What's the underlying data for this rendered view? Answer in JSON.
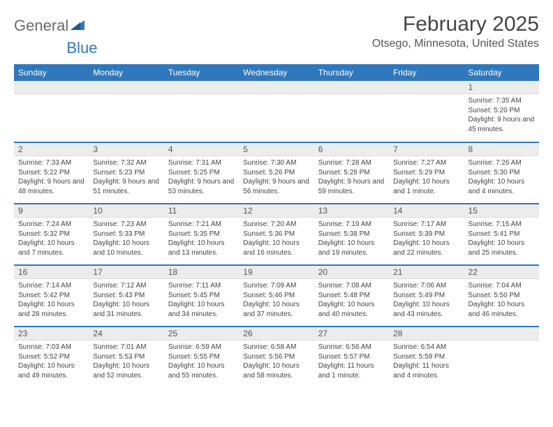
{
  "brand": {
    "part1": "General",
    "part2": "Blue"
  },
  "title": "February 2025",
  "location": "Otsego, Minnesota, United States",
  "colors": {
    "accent": "#2f78bd",
    "daybar": "#ececec",
    "text": "#444444"
  },
  "day_headers": [
    "Sunday",
    "Monday",
    "Tuesday",
    "Wednesday",
    "Thursday",
    "Friday",
    "Saturday"
  ],
  "weeks": [
    [
      null,
      null,
      null,
      null,
      null,
      null,
      {
        "n": "1",
        "sunrise": "7:35 AM",
        "sunset": "5:20 PM",
        "daylight": "9 hours and 45 minutes."
      }
    ],
    [
      {
        "n": "2",
        "sunrise": "7:33 AM",
        "sunset": "5:22 PM",
        "daylight": "9 hours and 48 minutes."
      },
      {
        "n": "3",
        "sunrise": "7:32 AM",
        "sunset": "5:23 PM",
        "daylight": "9 hours and 51 minutes."
      },
      {
        "n": "4",
        "sunrise": "7:31 AM",
        "sunset": "5:25 PM",
        "daylight": "9 hours and 53 minutes."
      },
      {
        "n": "5",
        "sunrise": "7:30 AM",
        "sunset": "5:26 PM",
        "daylight": "9 hours and 56 minutes."
      },
      {
        "n": "6",
        "sunrise": "7:28 AM",
        "sunset": "5:28 PM",
        "daylight": "9 hours and 59 minutes."
      },
      {
        "n": "7",
        "sunrise": "7:27 AM",
        "sunset": "5:29 PM",
        "daylight": "10 hours and 1 minute."
      },
      {
        "n": "8",
        "sunrise": "7:26 AM",
        "sunset": "5:30 PM",
        "daylight": "10 hours and 4 minutes."
      }
    ],
    [
      {
        "n": "9",
        "sunrise": "7:24 AM",
        "sunset": "5:32 PM",
        "daylight": "10 hours and 7 minutes."
      },
      {
        "n": "10",
        "sunrise": "7:23 AM",
        "sunset": "5:33 PM",
        "daylight": "10 hours and 10 minutes."
      },
      {
        "n": "11",
        "sunrise": "7:21 AM",
        "sunset": "5:35 PM",
        "daylight": "10 hours and 13 minutes."
      },
      {
        "n": "12",
        "sunrise": "7:20 AM",
        "sunset": "5:36 PM",
        "daylight": "10 hours and 16 minutes."
      },
      {
        "n": "13",
        "sunrise": "7:19 AM",
        "sunset": "5:38 PM",
        "daylight": "10 hours and 19 minutes."
      },
      {
        "n": "14",
        "sunrise": "7:17 AM",
        "sunset": "5:39 PM",
        "daylight": "10 hours and 22 minutes."
      },
      {
        "n": "15",
        "sunrise": "7:15 AM",
        "sunset": "5:41 PM",
        "daylight": "10 hours and 25 minutes."
      }
    ],
    [
      {
        "n": "16",
        "sunrise": "7:14 AM",
        "sunset": "5:42 PM",
        "daylight": "10 hours and 28 minutes."
      },
      {
        "n": "17",
        "sunrise": "7:12 AM",
        "sunset": "5:43 PM",
        "daylight": "10 hours and 31 minutes."
      },
      {
        "n": "18",
        "sunrise": "7:11 AM",
        "sunset": "5:45 PM",
        "daylight": "10 hours and 34 minutes."
      },
      {
        "n": "19",
        "sunrise": "7:09 AM",
        "sunset": "5:46 PM",
        "daylight": "10 hours and 37 minutes."
      },
      {
        "n": "20",
        "sunrise": "7:08 AM",
        "sunset": "5:48 PM",
        "daylight": "10 hours and 40 minutes."
      },
      {
        "n": "21",
        "sunrise": "7:06 AM",
        "sunset": "5:49 PM",
        "daylight": "10 hours and 43 minutes."
      },
      {
        "n": "22",
        "sunrise": "7:04 AM",
        "sunset": "5:50 PM",
        "daylight": "10 hours and 46 minutes."
      }
    ],
    [
      {
        "n": "23",
        "sunrise": "7:03 AM",
        "sunset": "5:52 PM",
        "daylight": "10 hours and 49 minutes."
      },
      {
        "n": "24",
        "sunrise": "7:01 AM",
        "sunset": "5:53 PM",
        "daylight": "10 hours and 52 minutes."
      },
      {
        "n": "25",
        "sunrise": "6:59 AM",
        "sunset": "5:55 PM",
        "daylight": "10 hours and 55 minutes."
      },
      {
        "n": "26",
        "sunrise": "6:58 AM",
        "sunset": "5:56 PM",
        "daylight": "10 hours and 58 minutes."
      },
      {
        "n": "27",
        "sunrise": "6:56 AM",
        "sunset": "5:57 PM",
        "daylight": "11 hours and 1 minute."
      },
      {
        "n": "28",
        "sunrise": "6:54 AM",
        "sunset": "5:59 PM",
        "daylight": "11 hours and 4 minutes."
      },
      null
    ]
  ],
  "labels": {
    "sunrise": "Sunrise:",
    "sunset": "Sunset:",
    "daylight": "Daylight:"
  }
}
